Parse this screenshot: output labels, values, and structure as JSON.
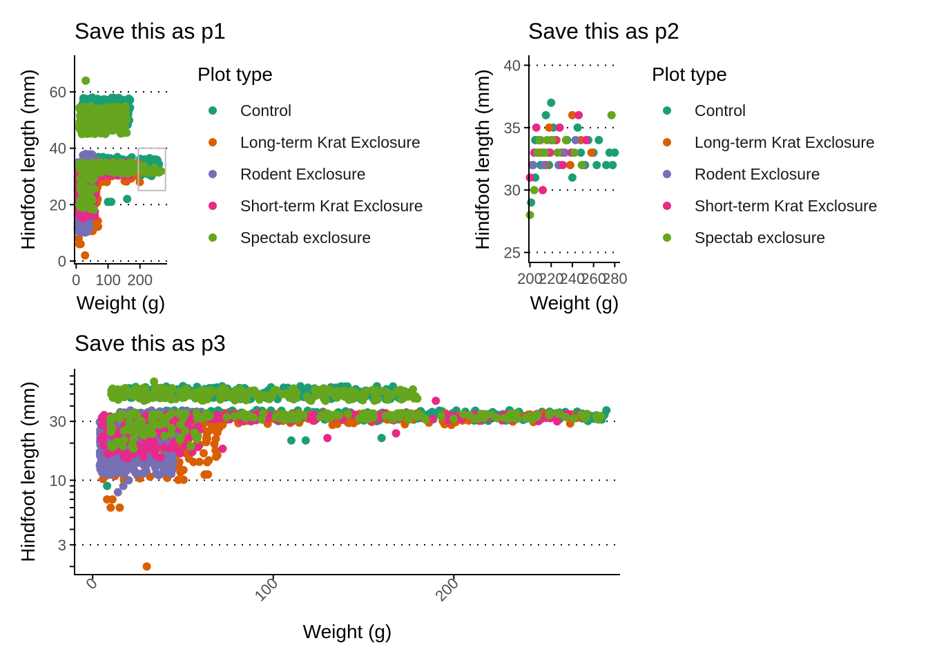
{
  "colors": {
    "Control": "#1B9E77",
    "Long-term Krat Exclosure": "#D95F02",
    "Rodent Exclosure": "#7570B3",
    "Short-term Krat Exclosure": "#E7298A",
    "Spectab exclosure": "#66A61E"
  },
  "legend": {
    "title": "Plot type",
    "entries": [
      "Control",
      "Long-term Krat Exclosure",
      "Rodent Exclosure",
      "Short-term Krat Exclosure",
      "Spectab exclosure"
    ]
  },
  "chart_data": [
    {
      "id": "p1",
      "type": "scatter",
      "title": "Save this as p1",
      "xlabel": "Weight (g)",
      "ylabel": "Hindfoot length (mm)",
      "xlim": [
        -5,
        285
      ],
      "ylim": [
        -1,
        73
      ],
      "x_ticks": [
        0,
        100,
        200
      ],
      "x_tick_labels": [
        "0",
        "100",
        "200"
      ],
      "y_ticks": [
        0,
        20,
        40,
        60
      ],
      "y_tick_labels": [
        "0",
        "20",
        "40",
        "60"
      ],
      "y_scale": "linear",
      "grid": "horizontal dotted",
      "legend_position": "right",
      "zoom_box": {
        "x": [
          195,
          280
        ],
        "y": [
          25,
          40
        ]
      },
      "series": [
        {
          "name": "Control",
          "clusters": [
            {
              "x": [
                5,
                60
              ],
              "y": [
                15,
                30
              ],
              "n": 150
            },
            {
              "x": [
                15,
                170
              ],
              "y": [
                48,
                58
              ],
              "n": 160
            },
            {
              "x": [
                40,
                260
              ],
              "y": [
                30,
                37
              ],
              "n": 120
            }
          ],
          "points": [
            [
              30,
              64
            ],
            [
              50,
              58
            ],
            [
              100,
              21
            ],
            [
              110,
              21
            ],
            [
              160,
              22
            ],
            [
              150,
              57
            ]
          ]
        },
        {
          "name": "Long-term Krat Exclosure",
          "clusters": [
            {
              "x": [
                5,
                70
              ],
              "y": [
                10,
                30
              ],
              "n": 120
            },
            {
              "x": [
                50,
                200
              ],
              "y": [
                28,
                35
              ],
              "n": 90
            }
          ],
          "points": [
            [
              10,
              6
            ],
            [
              14,
              6
            ],
            [
              28,
              2
            ],
            [
              8,
              8
            ]
          ]
        },
        {
          "name": "Rodent Exclosure",
          "clusters": [
            {
              "x": [
                5,
                45
              ],
              "y": [
                10,
                35
              ],
              "n": 260
            },
            {
              "x": [
                20,
                60
              ],
              "y": [
                30,
                38
              ],
              "n": 80
            }
          ],
          "points": []
        },
        {
          "name": "Short-term Krat Exclosure",
          "clusters": [
            {
              "x": [
                5,
                60
              ],
              "y": [
                15,
                33
              ],
              "n": 80
            },
            {
              "x": [
                40,
                180
              ],
              "y": [
                30,
                35
              ],
              "n": 70
            }
          ],
          "points": []
        },
        {
          "name": "Spectab exclosure",
          "clusters": [
            {
              "x": [
                10,
                160
              ],
              "y": [
                45,
                55
              ],
              "n": 150
            },
            {
              "x": [
                10,
                60
              ],
              "y": [
                18,
                35
              ],
              "n": 60
            },
            {
              "x": [
                60,
                270
              ],
              "y": [
                31,
                35
              ],
              "n": 60
            }
          ],
          "points": [
            [
              30,
              64
            ],
            [
              35,
              53
            ]
          ]
        }
      ]
    },
    {
      "id": "p2",
      "type": "scatter",
      "title": "Save this as p2",
      "xlabel": "Weight (g)",
      "ylabel": "Hindfoot length (mm)",
      "xlim": [
        199,
        285
      ],
      "ylim": [
        24.2,
        40.8
      ],
      "x_ticks": [
        200,
        220,
        240,
        260,
        280
      ],
      "x_tick_labels": [
        "200",
        "220",
        "240",
        "260",
        "280"
      ],
      "y_ticks": [
        25,
        30,
        35,
        40
      ],
      "y_tick_labels": [
        "25",
        "30",
        "35",
        "40"
      ],
      "y_scale": "linear",
      "grid": "horizontal dotted",
      "legend_position": "right",
      "series": [
        {
          "name": "Control",
          "points": [
            [
              201,
              29
            ],
            [
              205,
              31
            ],
            [
              208,
              34
            ],
            [
              212,
              33
            ],
            [
              215,
              36
            ],
            [
              220,
              37
            ],
            [
              222,
              35
            ],
            [
              228,
              32
            ],
            [
              235,
              34
            ],
            [
              240,
              31
            ],
            [
              245,
              35
            ],
            [
              248,
              33
            ],
            [
              252,
              32
            ],
            [
              255,
              34
            ],
            [
              260,
              33
            ],
            [
              265,
              34
            ],
            [
              272,
              32
            ],
            [
              275,
              33
            ],
            [
              280,
              33
            ],
            [
              278,
              32
            ],
            [
              263,
              32
            ],
            [
              232,
              33
            ],
            [
              218,
              32
            ],
            [
              205,
              34
            ],
            [
              210,
              32
            ]
          ]
        },
        {
          "name": "Long-term Krat Exclosure",
          "points": [
            [
              210,
              33
            ],
            [
              218,
              35
            ],
            [
              225,
              34
            ],
            [
              238,
              32
            ],
            [
              240,
              36
            ],
            [
              248,
              34
            ],
            [
              258,
              33
            ],
            [
              230,
              33
            ],
            [
              202,
              32
            ],
            [
              215,
              32
            ]
          ]
        },
        {
          "name": "Rodent Exclosure",
          "points": [
            [
              203,
              32
            ],
            [
              207,
              33
            ],
            [
              213,
              32
            ],
            [
              220,
              34
            ],
            [
              227,
              32
            ],
            [
              233,
              33
            ],
            [
              243,
              34
            ],
            [
              250,
              32
            ],
            [
              217,
              33
            ],
            [
              210,
              34
            ]
          ]
        },
        {
          "name": "Short-term Krat Exclosure",
          "points": [
            [
              200,
              31
            ],
            [
              206,
              35
            ],
            [
              212,
              30
            ],
            [
              219,
              33
            ],
            [
              224,
              34
            ],
            [
              231,
              32
            ],
            [
              239,
              33
            ],
            [
              246,
              36
            ],
            [
              253,
              34
            ],
            [
              228,
              35
            ],
            [
              204,
              33
            ]
          ]
        },
        {
          "name": "Spectab exclosure",
          "points": [
            [
              200,
              28
            ],
            [
              204,
              30
            ],
            [
              209,
              34
            ],
            [
              214,
              33
            ],
            [
              221,
              34
            ],
            [
              226,
              33
            ],
            [
              234,
              34
            ],
            [
              242,
              33
            ],
            [
              249,
              32
            ],
            [
              277,
              36
            ],
            [
              216,
              34
            ],
            [
              207,
              33
            ]
          ]
        }
      ]
    },
    {
      "id": "p3",
      "type": "scatter",
      "title": "Save this as p3",
      "xlabel": "Weight (g)",
      "ylabel": "Hindfoot length (mm)",
      "xlim": [
        -10,
        292
      ],
      "ylim": [
        1.72,
        80
      ],
      "x_ticks": [
        0,
        100,
        200
      ],
      "x_tick_labels": [
        "0",
        "100",
        "200"
      ],
      "x_tick_label_angle": -45,
      "y_ticks": [
        3,
        10,
        30
      ],
      "y_tick_labels": [
        "3",
        "10",
        "30"
      ],
      "y_minor_ticks": [
        2,
        4,
        5,
        6,
        7,
        8,
        9,
        20,
        40,
        50,
        60,
        70
      ],
      "y_scale": "log10",
      "grid": "horizontal dotted",
      "legend_position": "none",
      "series": [
        {
          "name": "Control",
          "clusters": [
            {
              "x": [
                5,
                50
              ],
              "y": [
                13,
                30
              ],
              "n": 160
            },
            {
              "x": [
                20,
                175
              ],
              "y": [
                45,
                58
              ],
              "n": 200
            },
            {
              "x": [
                40,
                285
              ],
              "y": [
                30,
                37
              ],
              "n": 240
            }
          ],
          "points": [
            [
              12,
              48
            ],
            [
              20,
              55
            ],
            [
              50,
              58
            ],
            [
              110,
              21
            ],
            [
              118,
              21
            ],
            [
              160,
              22
            ],
            [
              8,
              9
            ]
          ]
        },
        {
          "name": "Long-term Krat Exclosure",
          "clusters": [
            {
              "x": [
                5,
                70
              ],
              "y": [
                10,
                30
              ],
              "n": 180
            },
            {
              "x": [
                50,
                270
              ],
              "y": [
                28,
                35
              ],
              "n": 130
            }
          ],
          "points": [
            [
              8,
              7
            ],
            [
              10,
              6
            ],
            [
              15,
              6
            ],
            [
              11,
              7
            ],
            [
              30,
              2
            ],
            [
              48,
              14
            ]
          ]
        },
        {
          "name": "Rodent Exclosure",
          "clusters": [
            {
              "x": [
                4,
                45
              ],
              "y": [
                11,
                30
              ],
              "n": 420
            },
            {
              "x": [
                15,
                60
              ],
              "y": [
                25,
                37
              ],
              "n": 120
            }
          ],
          "points": [
            [
              14,
              8
            ],
            [
              17,
              9
            ],
            [
              20,
              10
            ]
          ]
        },
        {
          "name": "Short-term Krat Exclosure",
          "clusters": [
            {
              "x": [
                5,
                60
              ],
              "y": [
                15,
                34
              ],
              "n": 120
            },
            {
              "x": [
                40,
                270
              ],
              "y": [
                30,
                35
              ],
              "n": 130
            }
          ],
          "points": [
            [
              72,
              18
            ],
            [
              168,
              24
            ],
            [
              190,
              44
            ],
            [
              130,
              22
            ]
          ]
        },
        {
          "name": "Spectab exclosure",
          "clusters": [
            {
              "x": [
                10,
                180
              ],
              "y": [
                44,
                56
              ],
              "n": 220
            },
            {
              "x": [
                10,
                60
              ],
              "y": [
                18,
                36
              ],
              "n": 80
            },
            {
              "x": [
                60,
                282
              ],
              "y": [
                31,
                35
              ],
              "n": 110
            }
          ],
          "points": [
            [
              34,
              63
            ],
            [
              178,
              46
            ],
            [
              280,
              33
            ]
          ]
        }
      ]
    }
  ]
}
